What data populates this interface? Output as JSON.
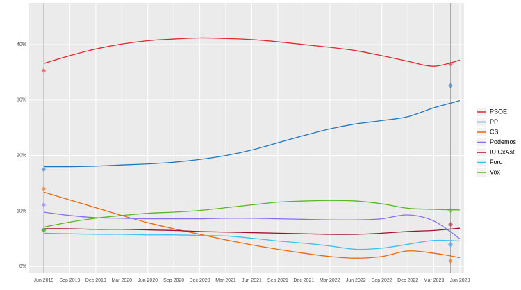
{
  "chart_data": {
    "type": "line",
    "x": [
      2019.42,
      2019.67,
      2019.92,
      2020.17,
      2020.42,
      2020.67,
      2020.92,
      2021.17,
      2021.42,
      2021.67,
      2021.92,
      2022.17,
      2022.42,
      2022.67,
      2022.92,
      2023.17,
      2023.42
    ],
    "xlim": [
      2019.28,
      2023.46
    ],
    "xticks": [
      {
        "value": 2019.42,
        "label": "Jun 2019"
      },
      {
        "value": 2019.67,
        "label": "Sep 2019"
      },
      {
        "value": 2019.92,
        "label": "Dec 2019"
      },
      {
        "value": 2020.17,
        "label": "Mar 2020"
      },
      {
        "value": 2020.42,
        "label": "Jun 2020"
      },
      {
        "value": 2020.67,
        "label": "Sep 2020"
      },
      {
        "value": 2020.92,
        "label": "Dec 2020"
      },
      {
        "value": 2021.17,
        "label": "Mar 2021"
      },
      {
        "value": 2021.42,
        "label": "Jun 2021"
      },
      {
        "value": 2021.67,
        "label": "Sep 2021"
      },
      {
        "value": 2021.92,
        "label": "Dec 2021"
      },
      {
        "value": 2022.17,
        "label": "Mar 2022"
      },
      {
        "value": 2022.42,
        "label": "Jun 2022"
      },
      {
        "value": 2022.67,
        "label": "Sep 2022"
      },
      {
        "value": 2022.92,
        "label": "Dec 2022"
      },
      {
        "value": 2023.17,
        "label": "Mar 2023"
      },
      {
        "value": 2023.42,
        "label": "Jun 2023"
      }
    ],
    "ylim": [
      -1.1,
      47.4
    ],
    "yticks": [
      {
        "value": 0,
        "label": "0%"
      },
      {
        "value": 10,
        "label": "10%"
      },
      {
        "value": 20,
        "label": "20%"
      },
      {
        "value": 30,
        "label": "30%"
      },
      {
        "value": 40,
        "label": "40%"
      }
    ],
    "grid": true,
    "legend": "right",
    "results_x": [
      2019.42,
      2023.33
    ],
    "series": [
      {
        "name": "PSOE",
        "color": "#e3262d",
        "values": [
          36.6,
          38.0,
          39.2,
          40.1,
          40.7,
          41.0,
          41.2,
          41.1,
          40.9,
          40.5,
          40.0,
          39.5,
          38.9,
          38.0,
          37.0,
          36.1,
          37.2
        ],
        "results": [
          35.3,
          36.5
        ]
      },
      {
        "name": "PP",
        "color": "#1f77c0",
        "values": [
          18.0,
          18.0,
          18.1,
          18.3,
          18.5,
          18.8,
          19.3,
          20.0,
          21.0,
          22.3,
          23.6,
          24.8,
          25.7,
          26.3,
          27.0,
          28.6,
          29.9
        ],
        "results": [
          17.5,
          32.6
        ]
      },
      {
        "name": "CS",
        "color": "#e8690b",
        "values": [
          13.4,
          12.0,
          10.6,
          9.2,
          7.9,
          6.8,
          5.8,
          4.8,
          3.9,
          3.1,
          2.4,
          1.8,
          1.5,
          1.8,
          2.8,
          2.4,
          1.6
        ],
        "results": [
          14.0,
          1.0
        ]
      },
      {
        "name": "Podemos",
        "color": "#8a6ff0",
        "values": [
          9.8,
          9.2,
          8.8,
          8.7,
          8.6,
          8.6,
          8.6,
          8.7,
          8.7,
          8.6,
          8.5,
          8.4,
          8.4,
          8.6,
          9.3,
          8.2,
          5.0
        ],
        "results": [
          11.1,
          4.0
        ]
      },
      {
        "name": "IU.CxAst",
        "color": "#a3102c",
        "values": [
          6.8,
          6.8,
          6.7,
          6.7,
          6.6,
          6.5,
          6.3,
          6.2,
          6.1,
          6.0,
          5.9,
          5.8,
          5.8,
          6.0,
          6.3,
          6.5,
          6.9
        ],
        "results": [
          6.6,
          7.6
        ]
      },
      {
        "name": "Foro",
        "color": "#3ebff2",
        "values": [
          6.0,
          5.9,
          5.8,
          5.8,
          5.7,
          5.7,
          5.6,
          5.5,
          5.1,
          4.6,
          4.2,
          3.7,
          3.1,
          3.3,
          4.0,
          4.7,
          4.6
        ],
        "results": [
          6.6,
          3.9
        ]
      },
      {
        "name": "Vox",
        "color": "#5ab524",
        "values": [
          7.1,
          8.0,
          8.7,
          9.2,
          9.6,
          9.8,
          10.1,
          10.6,
          11.1,
          11.6,
          11.8,
          11.9,
          11.8,
          11.3,
          10.5,
          10.3,
          10.2
        ],
        "results": [
          6.5,
          10.1
        ]
      }
    ]
  }
}
